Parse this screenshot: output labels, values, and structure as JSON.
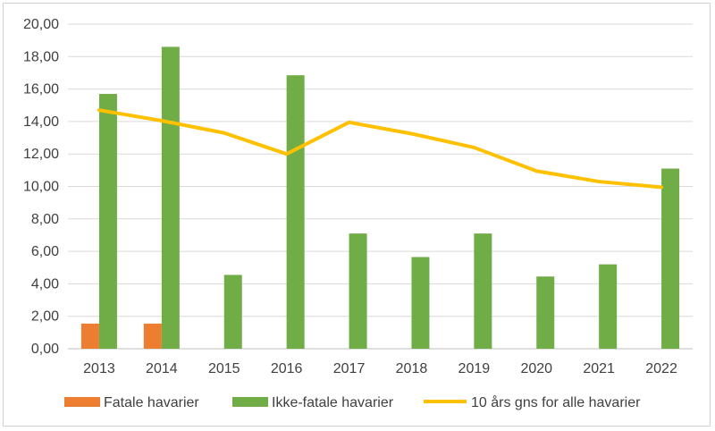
{
  "chart_data": {
    "type": "bar",
    "categories": [
      "2013",
      "2014",
      "2015",
      "2016",
      "2017",
      "2018",
      "2019",
      "2020",
      "2021",
      "2022"
    ],
    "series": [
      {
        "name": "Fatale havarier",
        "kind": "bar",
        "color": "#ED7D31",
        "values": [
          1.55,
          1.55,
          0,
          0,
          0,
          0,
          0,
          0,
          0,
          0
        ]
      },
      {
        "name": "Ikke-fatale havarier",
        "kind": "bar",
        "color": "#70AD47",
        "values": [
          15.7,
          18.6,
          4.55,
          16.85,
          7.1,
          5.65,
          7.1,
          4.45,
          5.2,
          11.1
        ]
      },
      {
        "name": "10 års gns for alle havarier",
        "kind": "line",
        "color": "#FFC000",
        "values": [
          14.7,
          14.05,
          13.3,
          12.0,
          13.95,
          13.25,
          12.4,
          10.95,
          10.3,
          9.95
        ]
      }
    ],
    "ylim": [
      0,
      20
    ],
    "ytick_values": [
      0,
      2,
      4,
      6,
      8,
      10,
      12,
      14,
      16,
      18,
      20
    ],
    "ytick_labels": [
      "0,00",
      "2,00",
      "4,00",
      "6,00",
      "8,00",
      "10,00",
      "12,00",
      "14,00",
      "16,00",
      "18,00",
      "20,00"
    ],
    "grid": true,
    "legend_position": "bottom",
    "title": "",
    "xlabel": "",
    "ylabel": ""
  }
}
